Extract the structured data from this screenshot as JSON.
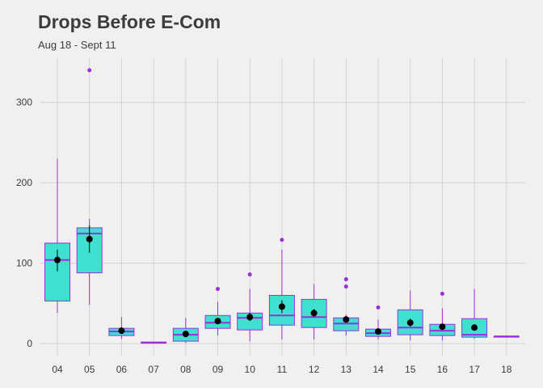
{
  "chart_data": {
    "type": "box",
    "title": "Drops Before E-Com",
    "subtitle": "Aug 18 - Sept 11",
    "xlabel": "",
    "ylabel": "",
    "categories": [
      "04",
      "05",
      "06",
      "07",
      "08",
      "09",
      "10",
      "11",
      "12",
      "13",
      "14",
      "15",
      "16",
      "17",
      "18"
    ],
    "ylim": [
      -15,
      355
    ],
    "yticks": [
      0,
      100,
      200,
      300
    ],
    "grid": true,
    "legend": "none",
    "colors": {
      "box_fill": "#40e0d0",
      "box_line": "#9b30d9",
      "mean_marker": "#000000",
      "grid": "#d2d2d2",
      "text": "#3c3c3c"
    },
    "boxes": [
      {
        "category": "04",
        "min": 38,
        "q1": 53,
        "median": 104,
        "q3": 125,
        "max": 230,
        "outliers": [],
        "mean": 104,
        "mean_lo": 90,
        "mean_hi": 117
      },
      {
        "category": "05",
        "min": 48,
        "q1": 88,
        "median": 137,
        "q3": 144,
        "max": 155,
        "outliers": [
          340
        ],
        "mean": 130,
        "mean_lo": 113,
        "mean_hi": 147
      },
      {
        "category": "06",
        "min": 6,
        "q1": 10,
        "median": 15,
        "q3": 19,
        "max": 33,
        "outliers": [],
        "mean": 16,
        "mean_lo": 13,
        "mean_hi": 19
      },
      {
        "category": "07",
        "min": 1,
        "q1": 1,
        "median": 1,
        "q3": 2,
        "max": 2,
        "outliers": [],
        "mean": null,
        "mean_lo": null,
        "mean_hi": null
      },
      {
        "category": "08",
        "min": 1,
        "q1": 3,
        "median": 11,
        "q3": 19,
        "max": 32,
        "outliers": [],
        "mean": 12,
        "mean_lo": 8,
        "mean_hi": 16
      },
      {
        "category": "09",
        "min": 10,
        "q1": 19,
        "median": 26,
        "q3": 35,
        "max": 52,
        "outliers": [
          68
        ],
        "mean": 28,
        "mean_lo": 24,
        "mean_hi": 32
      },
      {
        "category": "10",
        "min": 3,
        "q1": 17,
        "median": 32,
        "q3": 38,
        "max": 68,
        "outliers": [
          86
        ],
        "mean": 33,
        "mean_lo": 28,
        "mean_hi": 38
      },
      {
        "category": "11",
        "min": 5,
        "q1": 23,
        "median": 35,
        "q3": 60,
        "max": 117,
        "outliers": [
          129
        ],
        "mean": 46,
        "mean_lo": 38,
        "mean_hi": 54
      },
      {
        "category": "12",
        "min": 5,
        "q1": 20,
        "median": 33,
        "q3": 55,
        "max": 74,
        "outliers": [],
        "mean": 38,
        "mean_lo": 33,
        "mean_hi": 43
      },
      {
        "category": "13",
        "min": 10,
        "q1": 16,
        "median": 25,
        "q3": 32,
        "max": 36,
        "outliers": [
          71,
          80
        ],
        "mean": 30,
        "mean_lo": 26,
        "mean_hi": 34
      },
      {
        "category": "14",
        "min": 5,
        "q1": 9,
        "median": 13,
        "q3": 18,
        "max": 30,
        "outliers": [
          45
        ],
        "mean": 15,
        "mean_lo": 12,
        "mean_hi": 18
      },
      {
        "category": "15",
        "min": 4,
        "q1": 11,
        "median": 20,
        "q3": 42,
        "max": 66,
        "outliers": [],
        "mean": 26,
        "mean_lo": 21,
        "mean_hi": 31
      },
      {
        "category": "16",
        "min": 4,
        "q1": 10,
        "median": 16,
        "q3": 24,
        "max": 44,
        "outliers": [
          62
        ],
        "mean": 21,
        "mean_lo": 17,
        "mean_hi": 25
      },
      {
        "category": "17",
        "min": 6,
        "q1": 8,
        "median": 11,
        "q3": 31,
        "max": 68,
        "outliers": [],
        "mean": 20,
        "mean_lo": 17,
        "mean_hi": 23
      },
      {
        "category": "18",
        "min": 9,
        "q1": 9,
        "median": 9,
        "q3": 9,
        "max": 9,
        "outliers": [],
        "mean": null,
        "mean_lo": null,
        "mean_hi": null
      }
    ]
  }
}
